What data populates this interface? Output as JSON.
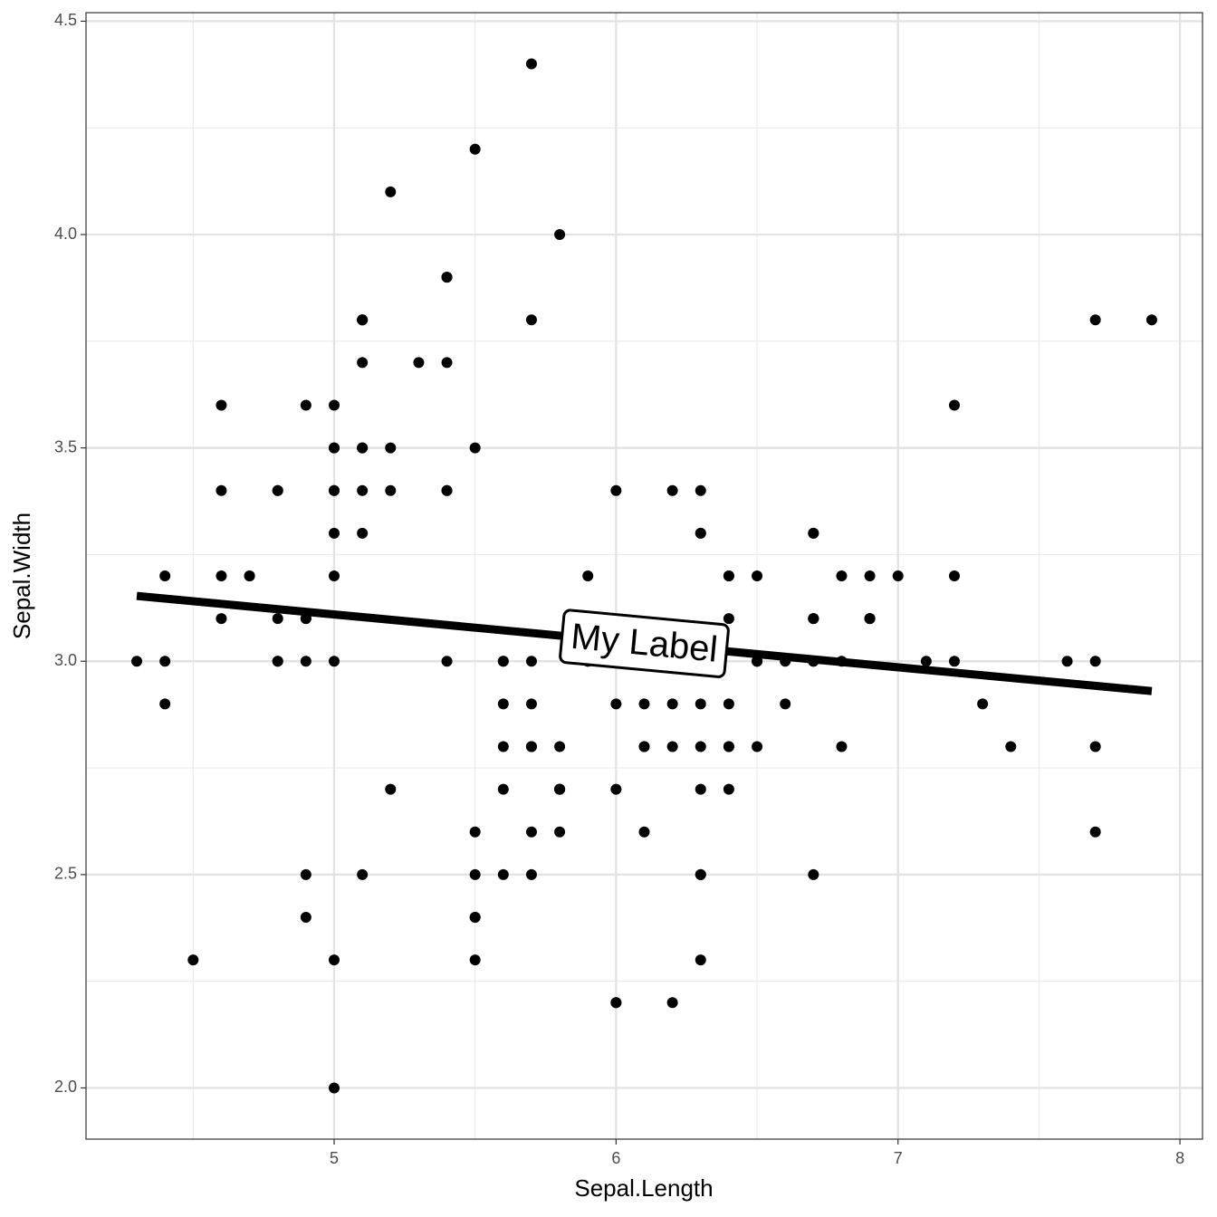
{
  "chart_data": {
    "type": "scatter",
    "x_label": "Sepal.Length",
    "y_label": "Sepal.Width",
    "color": "#000000",
    "x": [
      5.1,
      4.9,
      4.7,
      4.6,
      5.0,
      5.4,
      4.6,
      5.0,
      4.4,
      4.9,
      5.4,
      4.8,
      4.8,
      4.3,
      5.8,
      5.7,
      5.4,
      5.1,
      5.7,
      5.1,
      5.4,
      5.1,
      4.6,
      5.1,
      4.8,
      5.0,
      5.0,
      5.2,
      5.2,
      4.7,
      4.8,
      5.4,
      5.2,
      5.5,
      4.9,
      5.0,
      5.5,
      4.9,
      4.4,
      5.1,
      5.0,
      4.5,
      4.4,
      5.0,
      5.1,
      4.8,
      5.1,
      4.6,
      5.3,
      5.0,
      7.0,
      6.4,
      6.9,
      5.5,
      6.5,
      5.7,
      6.3,
      4.9,
      6.6,
      5.2,
      5.0,
      5.9,
      6.0,
      6.1,
      5.6,
      6.7,
      5.6,
      5.8,
      6.2,
      5.6,
      5.9,
      6.1,
      6.3,
      6.1,
      6.4,
      6.6,
      6.8,
      6.7,
      6.0,
      5.7,
      5.5,
      5.5,
      5.8,
      6.0,
      5.4,
      6.0,
      6.7,
      6.3,
      5.6,
      5.5,
      5.5,
      6.1,
      5.8,
      5.0,
      5.6,
      5.7,
      5.7,
      6.2,
      5.1,
      5.7,
      6.3,
      5.8,
      7.1,
      6.3,
      6.5,
      7.6,
      4.9,
      7.3,
      6.7,
      7.2,
      6.5,
      6.4,
      6.8,
      5.7,
      5.8,
      6.4,
      6.5,
      7.7,
      7.7,
      6.0,
      6.9,
      5.6,
      7.7,
      6.3,
      6.7,
      7.2,
      6.2,
      6.1,
      6.4,
      7.2,
      7.4,
      7.9,
      6.4,
      6.3,
      6.1,
      7.7,
      6.3,
      6.4,
      6.0,
      6.9,
      6.7,
      6.9,
      5.8,
      6.8,
      6.7,
      6.7,
      6.3,
      6.5,
      6.2,
      5.9
    ],
    "values": [
      3.5,
      3.0,
      3.2,
      3.1,
      3.6,
      3.9,
      3.4,
      3.4,
      2.9,
      3.1,
      3.7,
      3.4,
      3.0,
      3.0,
      4.0,
      4.4,
      3.9,
      3.5,
      3.8,
      3.8,
      3.4,
      3.7,
      3.6,
      3.3,
      3.4,
      3.0,
      3.4,
      3.5,
      3.4,
      3.2,
      3.1,
      3.4,
      4.1,
      4.2,
      3.1,
      3.2,
      3.5,
      3.6,
      3.0,
      3.4,
      3.5,
      2.3,
      3.2,
      3.5,
      3.8,
      3.0,
      3.8,
      3.2,
      3.7,
      3.3,
      3.2,
      3.2,
      3.1,
      2.3,
      2.8,
      2.8,
      3.3,
      2.4,
      2.9,
      2.7,
      2.0,
      3.0,
      2.2,
      2.9,
      2.9,
      3.1,
      3.0,
      2.7,
      2.2,
      2.5,
      3.2,
      2.8,
      2.5,
      2.8,
      2.9,
      3.0,
      2.8,
      3.0,
      2.9,
      2.6,
      2.4,
      2.4,
      2.7,
      2.7,
      3.0,
      3.4,
      3.1,
      2.3,
      3.0,
      2.5,
      2.6,
      3.0,
      2.6,
      2.3,
      2.7,
      3.0,
      2.9,
      2.9,
      2.5,
      2.8,
      3.3,
      2.7,
      3.0,
      2.9,
      3.0,
      3.0,
      2.5,
      2.9,
      2.5,
      3.6,
      3.2,
      2.7,
      3.0,
      2.5,
      2.8,
      3.2,
      3.0,
      3.8,
      2.6,
      2.2,
      3.2,
      2.8,
      2.8,
      2.7,
      3.3,
      3.2,
      2.8,
      3.0,
      2.8,
      3.0,
      2.8,
      3.8,
      2.8,
      2.8,
      2.6,
      3.0,
      3.4,
      3.1,
      3.0,
      3.1,
      3.1,
      3.1,
      2.7,
      3.2,
      3.3,
      3.0,
      2.5,
      3.0,
      3.4,
      3.0
    ],
    "line": {
      "x": [
        4.3,
        7.9
      ],
      "values": [
        3.153,
        2.93
      ],
      "color": "#000000",
      "label": "My Label"
    },
    "xlim": [
      4.12,
      8.08
    ],
    "ylim": [
      1.88,
      4.52
    ],
    "xticks": [
      5,
      6,
      7,
      8
    ],
    "yticks": [
      {
        "value": 2,
        "label": "2.0"
      },
      2.5,
      {
        "value": 3,
        "label": "3.0"
      },
      3.5,
      {
        "value": 4,
        "label": "4.0"
      },
      4.5
    ],
    "xminor": [
      4.5,
      5.5,
      6.5,
      7.5
    ],
    "yminor": [
      2.25,
      2.75,
      3.25,
      3.75,
      4.25
    ],
    "grid": true
  }
}
